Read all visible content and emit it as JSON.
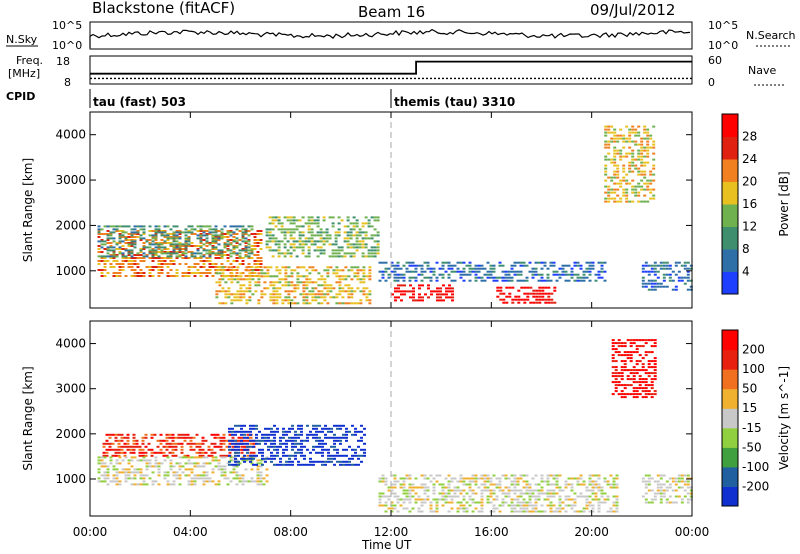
{
  "header": {
    "station": "Blackstone (fitACF)",
    "beam": "Beam 16",
    "date": "09/Jul/2012"
  },
  "summary_panels": {
    "nsky_label": "N.Sky",
    "nsearch_label": "N.Search",
    "freq_label_line1": "Freq.",
    "freq_label_line2": "[MHz]",
    "nave_label": "Nave",
    "cpid_label": "CPID",
    "noise_ticks_left": [
      "10^5",
      "10^0"
    ],
    "noise_ticks_right": [
      "10^5",
      "10^0"
    ],
    "freq_ticks": [
      "18",
      "8"
    ],
    "nave_ticks": [
      "60",
      "0"
    ],
    "cpid_segments": [
      {
        "label": "tau (fast) 503",
        "start_hour": 0
      },
      {
        "label": "themis (tau) 3310",
        "start_hour": 12
      }
    ],
    "freq_trace": [
      {
        "hour": 0,
        "mhz": 10
      },
      {
        "hour": 24,
        "mhz": 10
      }
    ],
    "nave_trace": [
      {
        "hour": 0,
        "value": 22
      },
      {
        "hour": 13,
        "value": 22
      },
      {
        "hour": 13,
        "value": 48
      },
      {
        "hour": 24,
        "value": 48
      }
    ]
  },
  "chart_data": [
    {
      "type": "heatmap",
      "title": "",
      "xlabel": "Time UT",
      "ylabel": "Slant Range [km]",
      "xlim": [
        0,
        24
      ],
      "ylim": [
        180,
        4500
      ],
      "x_ticks": [
        "00:00",
        "04:00",
        "08:00",
        "12:00",
        "16:00",
        "20:00",
        "00:00"
      ],
      "y_ticks": [
        "1000",
        "2000",
        "3000",
        "4000"
      ],
      "colorbar": {
        "label": "Power [dB]",
        "ticks": [
          "4",
          "8",
          "12",
          "16",
          "20",
          "24",
          "28"
        ],
        "colors": [
          "#1f3fff",
          "#2f6fa8",
          "#3f8f6f",
          "#6fb04f",
          "#e8c020",
          "#f08020",
          "#e02010",
          "#ff0000"
        ]
      },
      "regions": [
        {
          "t0": 0.3,
          "t1": 6.8,
          "r0": 900,
          "r1": 1900,
          "level": 5
        },
        {
          "t0": 0.3,
          "t1": 6.5,
          "r0": 1300,
          "r1": 2000,
          "level": 2
        },
        {
          "t0": 5,
          "t1": 11.2,
          "r0": 300,
          "r1": 1100,
          "level": 4
        },
        {
          "t0": 7,
          "t1": 11.5,
          "r0": 1300,
          "r1": 2200,
          "level": 3
        },
        {
          "t0": 11.5,
          "t1": 20.5,
          "r0": 800,
          "r1": 1200,
          "level": 1
        },
        {
          "t0": 12,
          "t1": 14.5,
          "r0": 350,
          "r1": 700,
          "level": 7
        },
        {
          "t0": 16.2,
          "t1": 18.5,
          "r0": 300,
          "r1": 650,
          "level": 7
        },
        {
          "t0": 20.5,
          "t1": 22.5,
          "r0": 2500,
          "r1": 4200,
          "level": 4
        },
        {
          "t0": 22,
          "t1": 24,
          "r0": 600,
          "r1": 1200,
          "level": 1
        }
      ]
    },
    {
      "type": "heatmap",
      "title": "",
      "xlabel": "Time UT",
      "ylabel": "Slant Range [km]",
      "xlim": [
        0,
        24
      ],
      "ylim": [
        180,
        4500
      ],
      "x_ticks": [
        "00:00",
        "04:00",
        "08:00",
        "12:00",
        "16:00",
        "20:00",
        "00:00"
      ],
      "y_ticks": [
        "1000",
        "2000",
        "3000",
        "4000"
      ],
      "colorbar": {
        "label": "Velocity [m s^-1]",
        "ticks": [
          "200",
          "100",
          "50",
          "15",
          "-15",
          "-50",
          "-100",
          "-200"
        ],
        "colors": [
          "#1030d0",
          "#2060a0",
          "#40a040",
          "#90d040",
          "#c8c8c8",
          "#f0b030",
          "#f07020",
          "#e82010",
          "#ff0000"
        ]
      },
      "regions": [
        {
          "t0": 0.5,
          "t1": 6.5,
          "r0": 1500,
          "r1": 2000,
          "level": 7
        },
        {
          "t0": 0.3,
          "t1": 7,
          "r0": 900,
          "r1": 1500,
          "level": 4
        },
        {
          "t0": 5.5,
          "t1": 11,
          "r0": 1300,
          "r1": 2200,
          "level": 0
        },
        {
          "t0": 11.5,
          "t1": 21,
          "r0": 250,
          "r1": 1100,
          "level": 4
        },
        {
          "t0": 20.8,
          "t1": 22.5,
          "r0": 2800,
          "r1": 4100,
          "level": 8
        },
        {
          "t0": 22,
          "t1": 24,
          "r0": 500,
          "r1": 1100,
          "level": 4
        }
      ]
    }
  ],
  "colors": {
    "axis": "#000000",
    "dashed_marker": "#aaaaaa"
  }
}
